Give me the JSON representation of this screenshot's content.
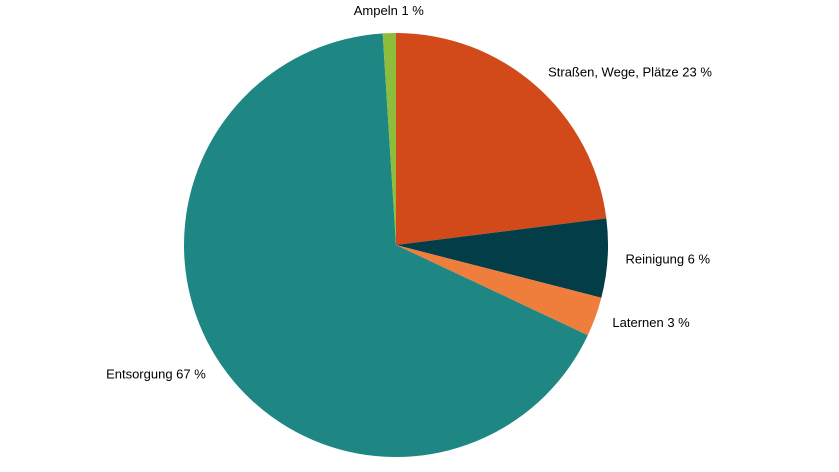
{
  "chart_data": {
    "type": "pie",
    "title": "",
    "slices": [
      {
        "label": "Straßen, Wege, Plätze 23 %",
        "category": "Straßen, Wege, Plätze",
        "value": 23,
        "color": "#d2491a"
      },
      {
        "label": "Reinigung 6 %",
        "category": "Reinigung",
        "value": 6,
        "color": "#023d48"
      },
      {
        "label": "Laternen 3 %",
        "category": "Laternen",
        "value": 3,
        "color": "#ef7d3b"
      },
      {
        "label": "Entsorgung 67 %",
        "category": "Entsorgung",
        "value": 67,
        "color": "#1e8784"
      },
      {
        "label": "Ampeln 1 %",
        "category": "Ampeln",
        "value": 1,
        "color": "#8ebd3c"
      }
    ],
    "legend": "none"
  }
}
